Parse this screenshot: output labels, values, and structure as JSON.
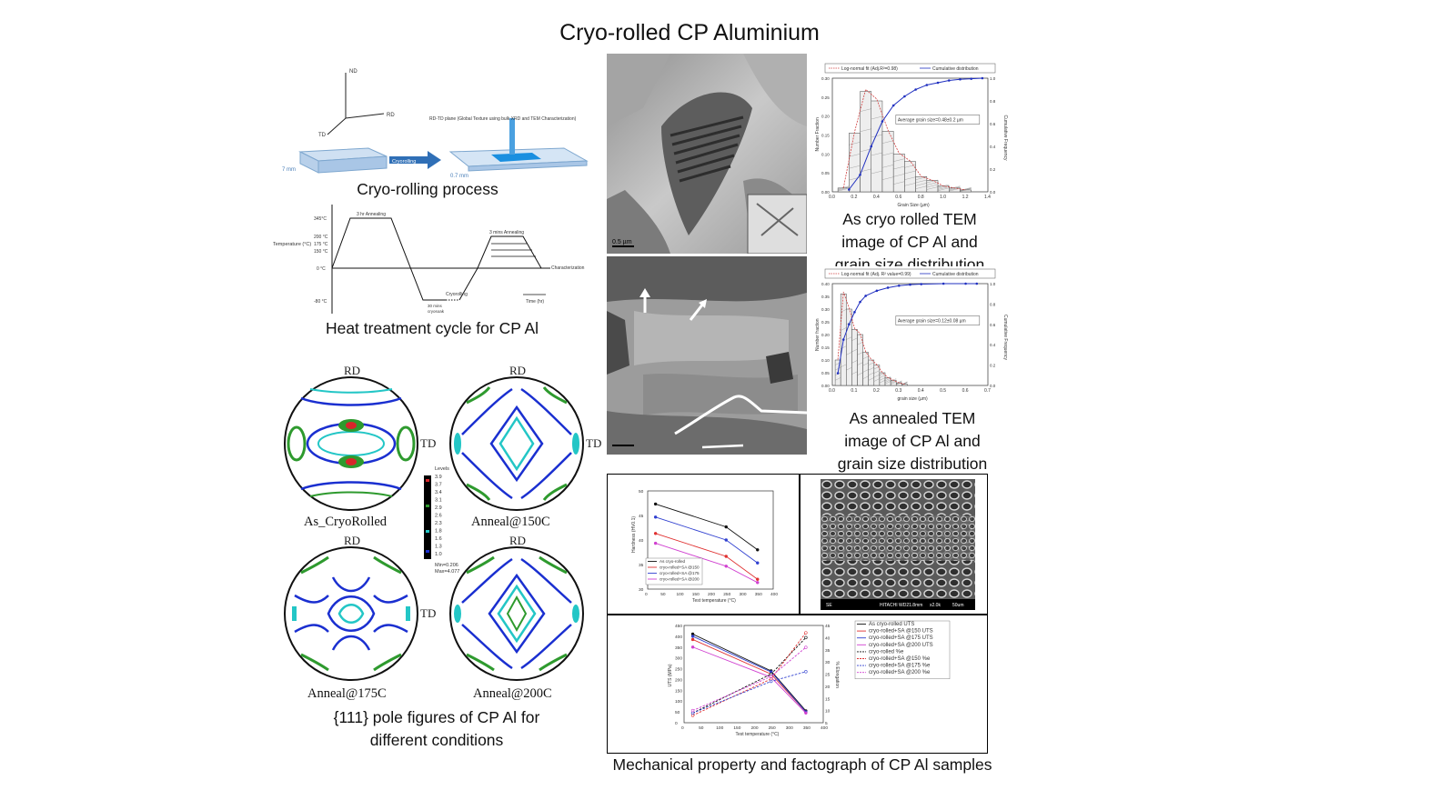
{
  "title": "Cryo-rolled CP Aluminium",
  "captions": {
    "cryo_rolling": "Cryo-rolling process",
    "heat_treatment": "Heat treatment cycle for CP Al",
    "pole_figures": [
      "{111} pole figures of CP Al for",
      "different conditions"
    ],
    "cryo_tem": [
      "As cryo rolled TEM",
      "image of CP Al and",
      "grain size distribution"
    ],
    "annealed_tem": [
      "As annealed TEM",
      "image of CP Al and",
      "grain size distribution"
    ],
    "mechanical": "Mechanical property and factograph of CP Al samples"
  },
  "schematic": {
    "axes": {
      "nd": "ND",
      "rd": "RD",
      "td": "TD"
    },
    "plane_label": "RD-TD plane (Global Texture using bulk XRD and TEM Characterization)",
    "arrow_label": "Cryorolling",
    "thickness_before": "7 mm",
    "thickness_after": "0.7 mm"
  },
  "heat_cycle": {
    "y_label": "Temperature (°C)",
    "x_label": "Time (hr)",
    "ticks": [
      "345°C",
      "200 °C",
      "175 °C",
      "150 °C",
      "0 °C",
      "-80 °C"
    ],
    "annotations": {
      "anneal_3hr": "3 hr Annealing",
      "anneal_3min": "3 mins Annealing",
      "soak": [
        "30 mins",
        "cryosoak"
      ],
      "cryorolling": "Cryorolling",
      "characterization": "Characterization"
    }
  },
  "pole_figures": {
    "rd": "RD",
    "td": "TD",
    "names": [
      "As_CryoRolled",
      "Anneal@150C",
      "Anneal@175C",
      "Anneal@200C"
    ],
    "levels_title": "Levels",
    "levels": [
      "3.9",
      "3.7",
      "3.4",
      "3.1",
      "2.9",
      "2.6",
      "2.3",
      "1.8",
      "1.6",
      "1.3",
      "1.0"
    ],
    "min": "Min=0.206",
    "max": "Max=4.077",
    "colors": {
      "outline": "#111111",
      "low": "#1a2fd0",
      "mid": "#23c6c6",
      "high": "#2e9a2e",
      "peak": "#d7262a"
    }
  },
  "tem": {
    "scale_bar": "0.5 µm"
  },
  "chart_data": [
    {
      "type": "bar",
      "title": "",
      "xlabel": "Grain Size (µm)",
      "ylabel": "Number Fraction",
      "y2label": "Cumulative Frequency",
      "xlim": [
        0,
        1.4
      ],
      "ylim": [
        0,
        0.3
      ],
      "y2lim": [
        0,
        1.0
      ],
      "x_ticks": [
        "0.0",
        "0.2",
        "0.4",
        "0.6",
        "0.8",
        "1.0",
        "1.2",
        "1.4"
      ],
      "y_ticks": [
        "0.00",
        "0.05",
        "0.10",
        "0.15",
        "0.20",
        "0.25",
        "0.30"
      ],
      "y2_ticks": [
        "0.0",
        "0.2",
        "0.4",
        "0.6",
        "0.8",
        "1.0"
      ],
      "legend": [
        "Log-normal fit (Adj.R²=0.98)",
        "Cumulative distribution"
      ],
      "annotation": "Average grain size=0.48±0.2 µm",
      "bin_width": 0.1,
      "bins": [
        0.1,
        0.2,
        0.3,
        0.4,
        0.5,
        0.6,
        0.7,
        0.8,
        0.9,
        1.0,
        1.1,
        1.2
      ],
      "values": [
        0.01,
        0.155,
        0.265,
        0.24,
        0.16,
        0.1,
        0.08,
        0.04,
        0.03,
        0.015,
        0.01,
        0.005
      ],
      "cumulative_x": [
        0.15,
        0.25,
        0.35,
        0.45,
        0.55,
        0.65,
        0.75,
        0.85,
        0.95,
        1.05,
        1.15,
        1.25,
        1.35
      ],
      "cumulative_y": [
        0.02,
        0.15,
        0.4,
        0.62,
        0.76,
        0.84,
        0.9,
        0.94,
        0.96,
        0.98,
        0.99,
        0.995,
        1.0
      ],
      "legend_position": "top"
    },
    {
      "type": "bar",
      "title": "",
      "xlabel": "grain size (µm)",
      "ylabel": "Number fraction",
      "y2label": "Cumulative Frequency",
      "xlim": [
        0,
        0.7
      ],
      "ylim": [
        0,
        0.4
      ],
      "y2lim": [
        0,
        1.0
      ],
      "x_ticks": [
        "0.0",
        "0.1",
        "0.2",
        "0.3",
        "0.4",
        "0.5",
        "0.6",
        "0.7"
      ],
      "y_ticks": [
        "0.00",
        "0.05",
        "0.10",
        "0.15",
        "0.20",
        "0.25",
        "0.30",
        "0.35",
        "0.40"
      ],
      "y2_ticks": [
        "0.0",
        "0.2",
        "0.4",
        "0.6",
        "0.8",
        "1.0"
      ],
      "legend": [
        "Log-normal fit (Adj. R² value=0.99)",
        "Cumulative distribution"
      ],
      "annotation": "Average grain size=0.12±0.08 µm",
      "bin_width": 0.025,
      "bins": [
        0.025,
        0.05,
        0.075,
        0.1,
        0.125,
        0.15,
        0.175,
        0.2,
        0.225,
        0.25,
        0.275,
        0.3,
        0.325
      ],
      "values": [
        0.1,
        0.36,
        0.3,
        0.22,
        0.2,
        0.13,
        0.1,
        0.08,
        0.05,
        0.03,
        0.02,
        0.01,
        0.005
      ],
      "cumulative_x": [
        0.025,
        0.05,
        0.075,
        0.1,
        0.125,
        0.15,
        0.2,
        0.25,
        0.3,
        0.35,
        0.4,
        0.5,
        0.6,
        0.65
      ],
      "cumulative_y": [
        0.12,
        0.45,
        0.6,
        0.72,
        0.82,
        0.88,
        0.93,
        0.96,
        0.98,
        0.99,
        0.995,
        1.0,
        1.0,
        1.0
      ],
      "legend_position": "top"
    },
    {
      "type": "line",
      "title": "",
      "xlabel": "Test temperature (°C)",
      "ylabel": "Hardness (HV0.1)",
      "xlim": [
        0,
        400
      ],
      "ylim": [
        25,
        55
      ],
      "x_ticks": [
        "0",
        "50",
        "100",
        "150",
        "200",
        "250",
        "300",
        "350",
        "400"
      ],
      "y_ticks": [
        "30",
        "35",
        "40",
        "45",
        "50"
      ],
      "x": [
        25,
        250,
        350
      ],
      "series": [
        {
          "name": "As cryo-rolled",
          "values": [
            51,
            44,
            37
          ],
          "color": "#111111"
        },
        {
          "name": "cryo-rolled+SA @150",
          "values": [
            42,
            35,
            28
          ],
          "color": "#e03030"
        },
        {
          "name": "cryo-rolled+SA @175",
          "values": [
            47,
            40,
            33
          ],
          "color": "#3040d0"
        },
        {
          "name": "cryo-rolled+SA @200",
          "values": [
            39,
            32,
            27
          ],
          "color": "#d040d0"
        }
      ],
      "legend_position": "bottom-left"
    },
    {
      "type": "line",
      "title": "",
      "xlabel": "Test temperature (°C)",
      "ylabel": "UTS (MPa)",
      "y2label": "% Elongation",
      "xlim": [
        0,
        400
      ],
      "ylim": [
        0,
        450
      ],
      "y2lim": [
        5,
        45
      ],
      "x_ticks": [
        "0",
        "50",
        "100",
        "150",
        "200",
        "250",
        "300",
        "350",
        "400"
      ],
      "y_ticks": [
        "0",
        "50",
        "100",
        "150",
        "200",
        "250",
        "300",
        "350",
        "400",
        "450"
      ],
      "y2_ticks": [
        "5",
        "10",
        "15",
        "20",
        "25",
        "30",
        "35",
        "40",
        "45"
      ],
      "x": [
        25,
        250,
        350
      ],
      "series": [
        {
          "name": "As cryo-rolled UTS",
          "values": [
            410,
            240,
            55
          ],
          "color": "#111111",
          "axis": "left"
        },
        {
          "name": "cryo-rolled+SA @150 UTS",
          "values": [
            385,
            225,
            50
          ],
          "color": "#e03030",
          "axis": "left"
        },
        {
          "name": "cryo-rolled+SA @175 UTS",
          "values": [
            400,
            235,
            50
          ],
          "color": "#3040d0",
          "axis": "left"
        },
        {
          "name": "cryo-rolled+SA @200 UTS",
          "values": [
            350,
            210,
            45
          ],
          "color": "#d040d0",
          "axis": "left"
        },
        {
          "name": "cryo-rolled %e",
          "values": [
            9,
            25,
            40
          ],
          "color": "#111111",
          "axis": "right",
          "dashed": true
        },
        {
          "name": "cryo-rolled+SA @150 %e",
          "values": [
            8,
            23,
            42
          ],
          "color": "#e03030",
          "axis": "right",
          "dashed": true
        },
        {
          "name": "cryo-rolled+SA @175 %e",
          "values": [
            9,
            22,
            26
          ],
          "color": "#3040d0",
          "axis": "right",
          "dashed": true
        },
        {
          "name": "cryo-rolled+SA @200 %e",
          "values": [
            10,
            24,
            36
          ],
          "color": "#d040d0",
          "axis": "right",
          "dashed": true
        }
      ],
      "legend_position": "top-right"
    }
  ],
  "fractograph": {
    "footer": [
      "SE",
      "HITACHI WD21.8mm",
      "x2.0k",
      "50um"
    ]
  }
}
